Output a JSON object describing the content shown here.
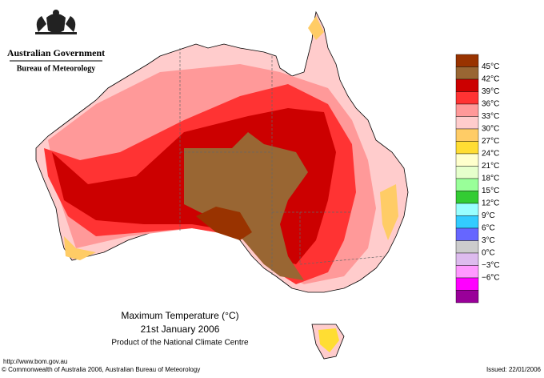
{
  "header": {
    "agency": "Australian Government",
    "bureau": "Bureau of Meteorology"
  },
  "title": "Maximum Temperature (°C)",
  "date": "21st January 2006",
  "product": "Product of the National Climate Centre",
  "footer": {
    "url": "http://www.bom.gov.au",
    "copyright": "© Commonwealth of Australia 2006, Australian Bureau of Meteorology",
    "issued": "Issued: 22/01/2006"
  },
  "legend": {
    "top_color": "#993300",
    "items": [
      {
        "label": "45°C",
        "color": "#996633"
      },
      {
        "label": "42°C",
        "color": "#cc0000"
      },
      {
        "label": "39°C",
        "color": "#ff3333"
      },
      {
        "label": "36°C",
        "color": "#ff9999"
      },
      {
        "label": "33°C",
        "color": "#ffcccc"
      },
      {
        "label": "30°C",
        "color": "#ffcc66"
      },
      {
        "label": "27°C",
        "color": "#ffdd33"
      },
      {
        "label": "24°C",
        "color": "#ffffcc"
      },
      {
        "label": "21°C",
        "color": "#e6ffcc"
      },
      {
        "label": "18°C",
        "color": "#99ff99"
      },
      {
        "label": "15°C",
        "color": "#33cc33"
      },
      {
        "label": "12°C",
        "color": "#99ffff"
      },
      {
        "label": "9°C",
        "color": "#33ccff"
      },
      {
        "label": "6°C",
        "color": "#6666ff"
      },
      {
        "label": "3°C",
        "color": "#cccccc"
      },
      {
        "label": "0°C",
        "color": "#ddbbee"
      },
      {
        "label": "−3°C",
        "color": "#ff99ff"
      },
      {
        "label": "−6°C",
        "color": "#ff00ff"
      }
    ],
    "bottom_color": "#990099"
  }
}
